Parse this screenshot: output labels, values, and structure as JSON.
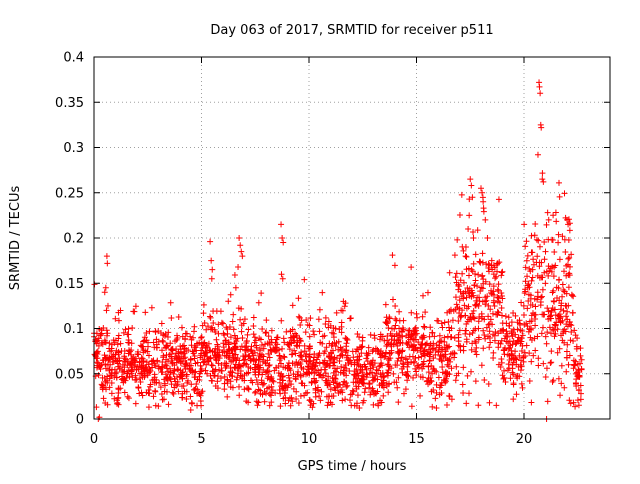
{
  "chart_data": {
    "type": "scatter",
    "title": "Day 063 of 2017, SRMTID for receiver p511",
    "xlabel": "GPS time / hours",
    "ylabel": "SRMTID / TECUs",
    "xlim": [
      0,
      24
    ],
    "ylim": [
      0,
      0.4
    ],
    "xticks": [
      "0",
      "5",
      "10",
      "15",
      "20"
    ],
    "yticks": [
      "0",
      "0.05",
      "0.1",
      "0.15",
      "0.2",
      "0.25",
      "0.3",
      "0.35",
      "0.4"
    ],
    "xtick_values": [
      0,
      5,
      10,
      15,
      20
    ],
    "ytick_values": [
      0,
      0.05,
      0.1,
      0.15,
      0.2,
      0.25,
      0.3,
      0.35,
      0.4
    ],
    "grid": true,
    "marker": "+",
    "series_color": "#ff0000",
    "point_count": 2400,
    "point_seed": 7,
    "baseline_segments": [
      {
        "x": [
          0.0,
          0.3
        ],
        "level": 0.07,
        "spread": 0.02
      },
      {
        "x": [
          0.3,
          2.5
        ],
        "level": 0.062,
        "spread": 0.02
      },
      {
        "x": [
          2.5,
          5.0
        ],
        "level": 0.058,
        "spread": 0.023
      },
      {
        "x": [
          5.0,
          7.5
        ],
        "level": 0.068,
        "spread": 0.022
      },
      {
        "x": [
          7.5,
          9.5
        ],
        "level": 0.055,
        "spread": 0.022
      },
      {
        "x": [
          9.5,
          12.0
        ],
        "level": 0.06,
        "spread": 0.022
      },
      {
        "x": [
          12.0,
          13.5
        ],
        "level": 0.052,
        "spread": 0.02
      },
      {
        "x": [
          13.5,
          15.5
        ],
        "level": 0.075,
        "spread": 0.025
      },
      {
        "x": [
          15.5,
          16.6
        ],
        "level": 0.06,
        "spread": 0.02
      },
      {
        "x": [
          16.6,
          19.0
        ],
        "level": 0.12,
        "spread": 0.04
      },
      {
        "x": [
          19.0,
          20.0
        ],
        "level": 0.075,
        "spread": 0.022
      },
      {
        "x": [
          20.0,
          22.3
        ],
        "level": 0.12,
        "spread": 0.045
      },
      {
        "x": [
          22.3,
          22.7
        ],
        "level": 0.05,
        "spread": 0.018
      }
    ],
    "highlight_points": [
      {
        "x": 0.5,
        "y": 0.14
      },
      {
        "x": 0.55,
        "y": 0.145
      },
      {
        "x": 0.6,
        "y": 0.18
      },
      {
        "x": 0.62,
        "y": 0.172
      },
      {
        "x": 0.65,
        "y": 0.125
      },
      {
        "x": 0.58,
        "y": 0.12
      },
      {
        "x": 0.2,
        "y": 0.0
      },
      {
        "x": 0.25,
        "y": 0.002
      },
      {
        "x": 5.4,
        "y": 0.196
      },
      {
        "x": 5.45,
        "y": 0.175
      },
      {
        "x": 5.5,
        "y": 0.165
      },
      {
        "x": 5.48,
        "y": 0.155
      },
      {
        "x": 6.75,
        "y": 0.2
      },
      {
        "x": 6.8,
        "y": 0.192
      },
      {
        "x": 6.85,
        "y": 0.185
      },
      {
        "x": 6.7,
        "y": 0.168
      },
      {
        "x": 6.6,
        "y": 0.145
      },
      {
        "x": 6.9,
        "y": 0.18
      },
      {
        "x": 8.7,
        "y": 0.215
      },
      {
        "x": 8.75,
        "y": 0.2
      },
      {
        "x": 8.8,
        "y": 0.195
      },
      {
        "x": 8.72,
        "y": 0.16
      },
      {
        "x": 8.78,
        "y": 0.155
      },
      {
        "x": 11.6,
        "y": 0.13
      },
      {
        "x": 11.7,
        "y": 0.128
      },
      {
        "x": 17.5,
        "y": 0.265
      },
      {
        "x": 17.55,
        "y": 0.258
      },
      {
        "x": 17.6,
        "y": 0.245
      },
      {
        "x": 17.45,
        "y": 0.225
      },
      {
        "x": 17.4,
        "y": 0.21
      },
      {
        "x": 17.65,
        "y": 0.2
      },
      {
        "x": 17.3,
        "y": 0.19
      },
      {
        "x": 18.0,
        "y": 0.255
      },
      {
        "x": 18.05,
        "y": 0.25
      },
      {
        "x": 18.1,
        "y": 0.24
      },
      {
        "x": 18.12,
        "y": 0.233
      },
      {
        "x": 18.2,
        "y": 0.22
      },
      {
        "x": 18.3,
        "y": 0.2
      },
      {
        "x": 18.5,
        "y": 0.175
      },
      {
        "x": 18.6,
        "y": 0.17
      },
      {
        "x": 20.7,
        "y": 0.372
      },
      {
        "x": 20.72,
        "y": 0.367
      },
      {
        "x": 20.75,
        "y": 0.36
      },
      {
        "x": 20.78,
        "y": 0.325
      },
      {
        "x": 20.8,
        "y": 0.322
      },
      {
        "x": 20.65,
        "y": 0.292
      },
      {
        "x": 20.85,
        "y": 0.265
      },
      {
        "x": 20.9,
        "y": 0.262
      },
      {
        "x": 20.5,
        "y": 0.203
      },
      {
        "x": 20.6,
        "y": 0.198
      },
      {
        "x": 21.1,
        "y": 0.228
      },
      {
        "x": 21.15,
        "y": 0.22
      },
      {
        "x": 21.3,
        "y": 0.198
      },
      {
        "x": 21.0,
        "y": 0.185
      },
      {
        "x": 21.05,
        "y": 0.0
      },
      {
        "x": 19.5,
        "y": 0.022
      },
      {
        "x": 22.0,
        "y": 0.22
      },
      {
        "x": 22.05,
        "y": 0.215
      },
      {
        "x": 21.9,
        "y": 0.198
      },
      {
        "x": 22.1,
        "y": 0.178
      },
      {
        "x": 4.5,
        "y": 0.01
      },
      {
        "x": 22.65,
        "y": 0.028
      }
    ]
  }
}
